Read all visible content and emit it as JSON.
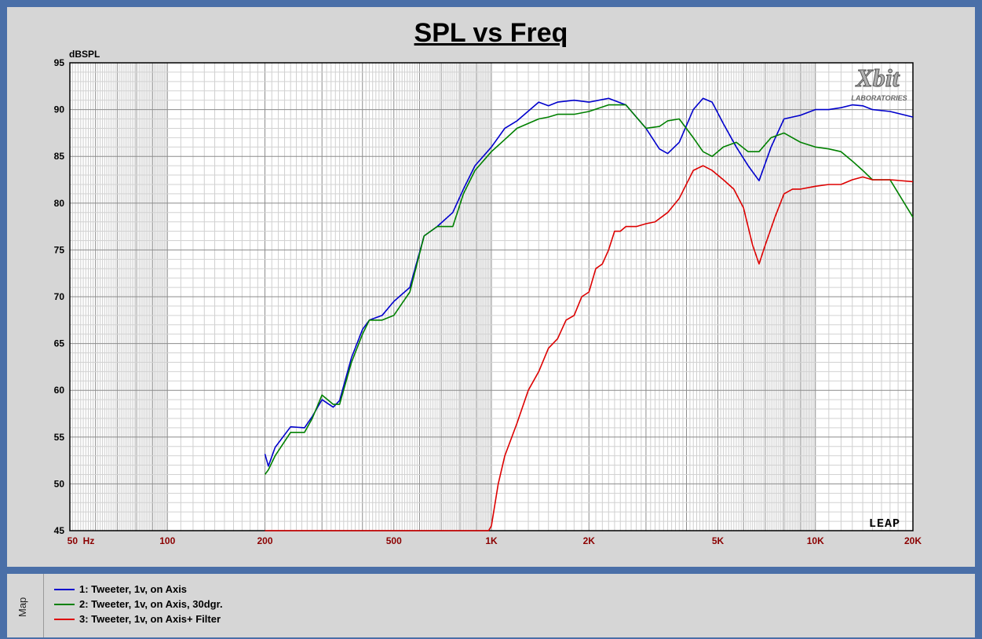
{
  "title": "SPL vs Freq",
  "map_tab": "Map",
  "legend": [
    {
      "label": "1: Tweeter, 1v, on Axis",
      "color": "#0000cc"
    },
    {
      "label": "2: Tweeter, 1v, on Axis, 30dgr.",
      "color": "#008000"
    },
    {
      "label": "3: Tweeter, 1v, on Axis+ Filter",
      "color": "#dd0000"
    }
  ],
  "logos": {
    "xbit": "Xbit LABORATORIES",
    "leap": "LEAP"
  },
  "chart_data": {
    "type": "line",
    "ylabel": "dBSPL",
    "xscale": "log",
    "xlim": [
      50,
      20000
    ],
    "ylim": [
      45,
      95
    ],
    "grid": true,
    "xtick_labels": [
      {
        "value": 50,
        "label": "50  Hz"
      },
      {
        "value": 100,
        "label": "100"
      },
      {
        "value": 200,
        "label": "200"
      },
      {
        "value": 500,
        "label": "500"
      },
      {
        "value": 1000,
        "label": "1K"
      },
      {
        "value": 2000,
        "label": "2K"
      },
      {
        "value": 5000,
        "label": "5K"
      },
      {
        "value": 10000,
        "label": "10K"
      },
      {
        "value": 20000,
        "label": "20K"
      }
    ],
    "ytick_labels": [
      "45",
      "50",
      "55",
      "60",
      "65",
      "70",
      "75",
      "80",
      "85",
      "90",
      "95"
    ],
    "series": [
      {
        "name": "1: Tweeter, 1v, on Axis",
        "color": "#0000cc",
        "x": [
          200,
          205,
          215,
          240,
          265,
          280,
          300,
          325,
          340,
          370,
          400,
          420,
          460,
          500,
          560,
          620,
          680,
          760,
          820,
          890,
          1000,
          1100,
          1200,
          1400,
          1500,
          1600,
          1800,
          2000,
          2300,
          2600,
          3000,
          3300,
          3500,
          3800,
          4200,
          4500,
          4800,
          5200,
          5700,
          6200,
          6700,
          7300,
          8000,
          9000,
          10000,
          11000,
          12000,
          13000,
          14000,
          15000,
          17000,
          20000
        ],
        "y": [
          53.2,
          51.9,
          53.9,
          56.1,
          56.0,
          57.2,
          59.0,
          58.2,
          58.9,
          63.5,
          66.5,
          67.5,
          68.0,
          69.5,
          71.0,
          76.5,
          77.5,
          79.0,
          81.5,
          84.0,
          86.0,
          88.0,
          88.8,
          90.8,
          90.4,
          90.8,
          91.0,
          90.8,
          91.2,
          90.5,
          88.0,
          85.8,
          85.3,
          86.5,
          90.0,
          91.2,
          90.8,
          88.5,
          86.0,
          84.0,
          82.4,
          86.0,
          89.0,
          89.4,
          90.0,
          90.0,
          90.2,
          90.5,
          90.4,
          90.0,
          89.8,
          89.2
        ]
      },
      {
        "name": "2: Tweeter, 1v, on Axis, 30dgr.",
        "color": "#008000",
        "x": [
          200,
          205,
          215,
          240,
          265,
          280,
          300,
          325,
          340,
          370,
          400,
          420,
          460,
          500,
          560,
          620,
          680,
          760,
          820,
          890,
          1000,
          1100,
          1200,
          1400,
          1500,
          1600,
          1800,
          2000,
          2300,
          2600,
          3000,
          3300,
          3500,
          3800,
          4200,
          4500,
          4800,
          5200,
          5700,
          6200,
          6700,
          7300,
          8000,
          9000,
          10000,
          11000,
          12000,
          13000,
          14000,
          15000,
          17000,
          20000
        ],
        "y": [
          51.0,
          51.5,
          53.0,
          55.5,
          55.5,
          57.0,
          59.5,
          58.5,
          58.5,
          63.0,
          66.0,
          67.5,
          67.5,
          68.0,
          70.5,
          76.5,
          77.5,
          77.5,
          81.0,
          83.5,
          85.5,
          86.8,
          88.0,
          89.0,
          89.2,
          89.5,
          89.5,
          89.8,
          90.5,
          90.5,
          88.0,
          88.2,
          88.8,
          89.0,
          87.0,
          85.5,
          85.0,
          86.0,
          86.5,
          85.5,
          85.5,
          87.0,
          87.5,
          86.5,
          86.0,
          85.8,
          85.5,
          84.5,
          83.5,
          82.5,
          82.5,
          78.5
        ]
      },
      {
        "name": "3: Tweeter, 1v, on Axis+ Filter",
        "color": "#dd0000",
        "x": [
          200,
          400,
          800,
          980,
          1000,
          1050,
          1100,
          1200,
          1300,
          1400,
          1500,
          1600,
          1700,
          1800,
          1900,
          2000,
          2100,
          2200,
          2300,
          2400,
          2500,
          2600,
          2800,
          3000,
          3200,
          3500,
          3800,
          4200,
          4500,
          4800,
          5200,
          5600,
          6000,
          6400,
          6700,
          7000,
          7500,
          8000,
          8500,
          9000,
          10000,
          11000,
          12000,
          13000,
          14000,
          15000,
          17000,
          20000
        ],
        "y": [
          45,
          45,
          45,
          45,
          45.5,
          50,
          53,
          56.5,
          60,
          62,
          64.5,
          65.5,
          67.5,
          68.0,
          70.0,
          70.5,
          73.0,
          73.5,
          75.0,
          77.0,
          77.0,
          77.5,
          77.5,
          77.8,
          78.0,
          79.0,
          80.5,
          83.5,
          84.0,
          83.5,
          82.5,
          81.5,
          79.5,
          75.5,
          73.5,
          75.5,
          78.5,
          81.0,
          81.5,
          81.5,
          81.8,
          82.0,
          82.0,
          82.5,
          82.8,
          82.5,
          82.5,
          82.3
        ]
      }
    ]
  }
}
